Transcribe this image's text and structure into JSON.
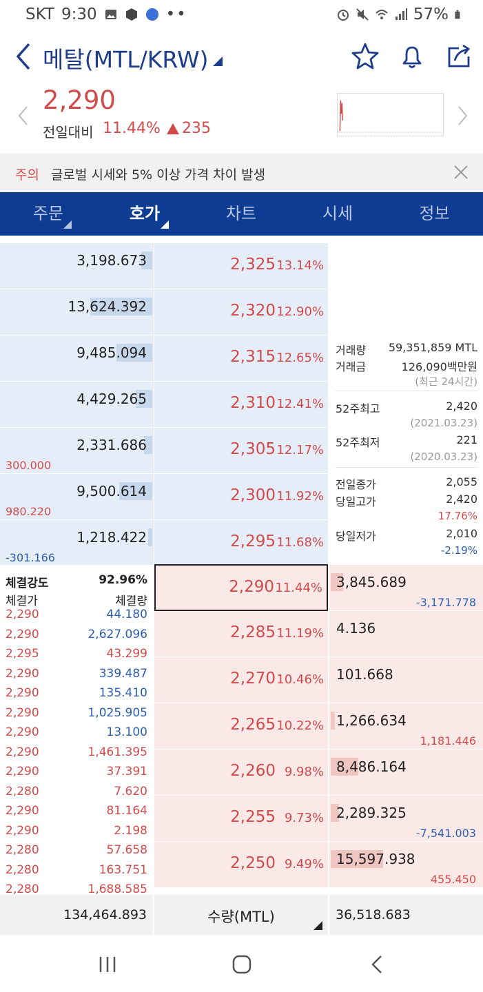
{
  "status": {
    "carrier": "SKT",
    "time": "9:30",
    "battery": "57%"
  },
  "header": {
    "title": "메탈(MTL/KRW)"
  },
  "price": {
    "current": "2,290",
    "prev_label": "전일대비",
    "change_pct": "11.44%",
    "change_amt": "235"
  },
  "warning": {
    "tag": "주의",
    "text": "글로벌 시세와 5% 이상 가격 차이 발생"
  },
  "tabs": [
    {
      "label": "주문"
    },
    {
      "label": "호가"
    },
    {
      "label": "차트"
    },
    {
      "label": "시세"
    },
    {
      "label": "정보"
    }
  ],
  "asks": [
    {
      "volume": "3,198.673",
      "price": "2,325",
      "pct": "13.14%",
      "change": "",
      "bar": 0.08
    },
    {
      "volume": "13,624.392",
      "price": "2,320",
      "pct": "12.90%",
      "change": "",
      "bar": 0.45
    },
    {
      "volume": "9,485.094",
      "price": "2,315",
      "pct": "12.65%",
      "change": "",
      "bar": 0.26
    },
    {
      "volume": "4,429.265",
      "price": "2,310",
      "pct": "12.41%",
      "change": "",
      "bar": 0.12
    },
    {
      "volume": "2,331.686",
      "price": "2,305",
      "pct": "12.17%",
      "change": "300.000",
      "change_color": "red",
      "bar": 0.06
    },
    {
      "volume": "9,500.614",
      "price": "2,300",
      "pct": "11.92%",
      "change": "980.220",
      "change_color": "red",
      "bar": 0.24
    },
    {
      "volume": "1,218.422",
      "price": "2,295",
      "pct": "11.68%",
      "change": "-301.166",
      "change_color": "blue",
      "bar": 0.03
    }
  ],
  "bids": [
    {
      "volume": "3,845.689",
      "price": "2,290",
      "pct": "11.44%",
      "change": "-3,171.778",
      "change_color": "blue",
      "bar": 0.09
    },
    {
      "volume": "4.136",
      "price": "2,285",
      "pct": "11.19%",
      "change": "",
      "bar": 0.0
    },
    {
      "volume": "101.668",
      "price": "2,270",
      "pct": "10.46%",
      "change": "",
      "bar": 0.0
    },
    {
      "volume": "1,266.634",
      "price": "2,265",
      "pct": "10.22%",
      "change": "1,181.446",
      "change_color": "red",
      "bar": 0.03
    },
    {
      "volume": "8,486.164",
      "price": "2,260",
      "pct": "9.98%",
      "change": "",
      "bar": 0.2
    },
    {
      "volume": "2,289.325",
      "price": "2,255",
      "pct": "9.73%",
      "change": "-7,541.003",
      "change_color": "blue",
      "bar": 0.06
    },
    {
      "volume": "15,597.938",
      "price": "2,250",
      "pct": "9.49%",
      "change": "455.450",
      "change_color": "red",
      "bar": 0.38
    }
  ],
  "info": {
    "vol_label": "거래량",
    "vol_value": "59,351,859 MTL",
    "amt_label": "거래금",
    "amt_value": "126,090백만원",
    "recent_note": "(최근 24시간)",
    "high52_label": "52주최고",
    "high52_value": "2,420",
    "high52_date": "(2021.03.23)",
    "low52_label": "52주최저",
    "low52_value": "221",
    "low52_date": "(2020.03.23)",
    "prev_close_label": "전일종가",
    "prev_close_value": "2,055",
    "day_high_label": "당일고가",
    "day_high_value": "2,420",
    "day_high_pct": "17.76%",
    "day_low_label": "당일저가",
    "day_low_value": "2,010",
    "day_low_pct": "-2.19%"
  },
  "strength": {
    "label": "체결강도",
    "value": "92.96%",
    "col_price": "체결가",
    "col_volume": "체결량",
    "trades": [
      {
        "price": "2,290",
        "volume": "44.180",
        "color": "blue"
      },
      {
        "price": "2,290",
        "volume": "2,627.096",
        "color": "blue"
      },
      {
        "price": "2,295",
        "volume": "43.299",
        "color": "red"
      },
      {
        "price": "2,290",
        "volume": "339.487",
        "color": "blue"
      },
      {
        "price": "2,290",
        "volume": "135.410",
        "color": "blue"
      },
      {
        "price": "2,290",
        "volume": "1,025.905",
        "color": "blue"
      },
      {
        "price": "2,290",
        "volume": "13.100",
        "color": "blue"
      },
      {
        "price": "2,290",
        "volume": "1,461.395",
        "color": "red"
      },
      {
        "price": "2,290",
        "volume": "37.391",
        "color": "red"
      },
      {
        "price": "2,280",
        "volume": "7.620",
        "color": "red"
      },
      {
        "price": "2,290",
        "volume": "81.164",
        "color": "red"
      },
      {
        "price": "2,290",
        "volume": "2.198",
        "color": "red"
      },
      {
        "price": "2,280",
        "volume": "57.658",
        "color": "red"
      },
      {
        "price": "2,280",
        "volume": "163.751",
        "color": "red"
      },
      {
        "price": "2,280",
        "volume": "1,688.585",
        "color": "red"
      }
    ]
  },
  "footer": {
    "ask_total": "134,464.893",
    "unit_label": "수량(MTL)",
    "bid_total": "36,518.683"
  },
  "colors": {
    "brand": "#0e3c93",
    "up": "#d24b4b",
    "down": "#2c5fb0",
    "ask_bg": "#e5eef8",
    "bid_bg": "#fbe9e8"
  }
}
